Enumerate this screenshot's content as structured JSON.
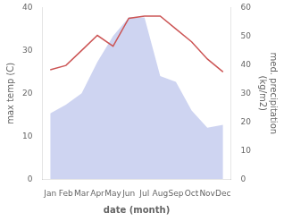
{
  "chart_data": {
    "type": "line",
    "categories": [
      "Jan",
      "Feb",
      "Mar",
      "Apr",
      "May",
      "Jun",
      "Jul",
      "Aug",
      "Sep",
      "Oct",
      "Nov",
      "Dec"
    ],
    "series": [
      {
        "type": "area",
        "axis": "y2",
        "color": "#c5ccee",
        "values": [
          23.0,
          26.0,
          30.0,
          41.0,
          50.0,
          56.5,
          56.5,
          36.0,
          34.0,
          24.0,
          18.0,
          19.0
        ]
      },
      {
        "type": "line",
        "color": "#cc5555",
        "values": [
          25.5,
          26.5,
          30.0,
          33.5,
          31.0,
          37.5,
          38.0,
          38.0,
          35.0,
          32.0,
          28.0,
          25.0
        ]
      }
    ],
    "xlabel": "date (month)",
    "ylabel": "max temp (C)",
    "y2label": "med. precipitation\n(kg/m2)",
    "ylim": [
      0,
      40
    ],
    "yticks": [
      0,
      10,
      20,
      30,
      40
    ],
    "y2lim": [
      0,
      60
    ],
    "y2ticks": [
      0,
      10,
      20,
      30,
      40,
      50,
      60
    ],
    "grid": false
  }
}
